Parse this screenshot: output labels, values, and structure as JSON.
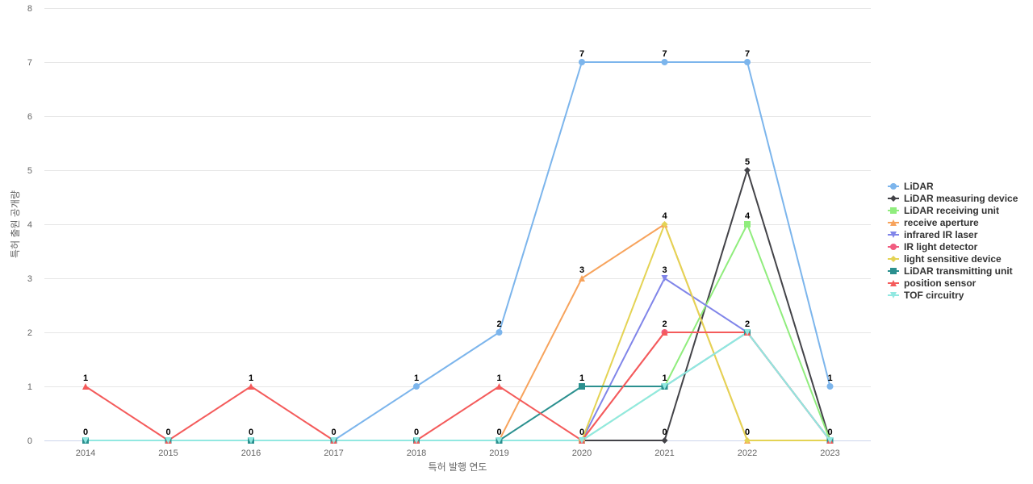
{
  "chart_data": {
    "type": "line",
    "title": "",
    "xlabel": "특허 발행 연도",
    "ylabel": "특허 출원 공개량",
    "categories": [
      "2014",
      "2015",
      "2016",
      "2017",
      "2018",
      "2019",
      "2020",
      "2021",
      "2022",
      "2023"
    ],
    "ylim": [
      0,
      8
    ],
    "yticks": [
      0,
      1,
      2,
      3,
      4,
      5,
      6,
      7,
      8
    ],
    "grid": true,
    "legend_position": "right",
    "series": [
      {
        "name": "LiDAR",
        "color": "#7cb5ec",
        "marker": "circle",
        "values": [
          0,
          0,
          0,
          0,
          1,
          2,
          7,
          7,
          7,
          1
        ]
      },
      {
        "name": "LiDAR measuring device",
        "color": "#434348",
        "marker": "diamond",
        "values": [
          0,
          0,
          0,
          0,
          0,
          0,
          0,
          0,
          5,
          0
        ]
      },
      {
        "name": "LiDAR receiving unit",
        "color": "#90ed7d",
        "marker": "square",
        "values": [
          0,
          0,
          0,
          0,
          0,
          0,
          0,
          1,
          4,
          0
        ]
      },
      {
        "name": "receive aperture",
        "color": "#f7a35c",
        "marker": "triangle",
        "values": [
          0,
          0,
          0,
          0,
          0,
          0,
          3,
          4,
          0,
          0
        ]
      },
      {
        "name": "infrared IR laser",
        "color": "#8085e9",
        "marker": "triangle-down",
        "values": [
          0,
          0,
          0,
          0,
          0,
          0,
          0,
          3,
          2,
          0
        ]
      },
      {
        "name": "IR light detector",
        "color": "#f15c80",
        "marker": "circle",
        "values": [
          0,
          0,
          0,
          0,
          0,
          0,
          0,
          2,
          2,
          0
        ]
      },
      {
        "name": "light sensitive device",
        "color": "#e4d354",
        "marker": "diamond",
        "values": [
          0,
          0,
          0,
          0,
          0,
          0,
          0,
          4,
          0,
          0
        ]
      },
      {
        "name": "LiDAR transmitting unit",
        "color": "#2b908f",
        "marker": "square",
        "values": [
          0,
          0,
          0,
          0,
          0,
          0,
          1,
          1,
          2,
          0
        ]
      },
      {
        "name": "position sensor",
        "color": "#f45b5b",
        "marker": "triangle",
        "values": [
          1,
          0,
          1,
          0,
          0,
          1,
          0,
          2,
          2,
          0
        ]
      },
      {
        "name": "TOF circuitry",
        "color": "#91e8e1",
        "marker": "triangle-down",
        "values": [
          0,
          0,
          0,
          0,
          0,
          0,
          0,
          1,
          2,
          0
        ]
      }
    ],
    "data_labels": [
      {
        "x": "2014",
        "label": "1",
        "value": 1
      },
      {
        "x": "2014",
        "label": "0",
        "value": 0
      },
      {
        "x": "2015",
        "label": "0",
        "value": 0
      },
      {
        "x": "2016",
        "label": "1",
        "value": 1
      },
      {
        "x": "2016",
        "label": "0",
        "value": 0
      },
      {
        "x": "2017",
        "label": "0",
        "value": 0
      },
      {
        "x": "2018",
        "label": "1",
        "value": 1
      },
      {
        "x": "2018",
        "label": "0",
        "value": 0
      },
      {
        "x": "2019",
        "label": "2",
        "value": 2
      },
      {
        "x": "2019",
        "label": "1",
        "value": 1
      },
      {
        "x": "2019",
        "label": "0",
        "value": 0
      },
      {
        "x": "2020",
        "label": "7",
        "value": 7
      },
      {
        "x": "2020",
        "label": "3",
        "value": 3
      },
      {
        "x": "2020",
        "label": "1",
        "value": 1
      },
      {
        "x": "2020",
        "label": "0",
        "value": 0
      },
      {
        "x": "2021",
        "label": "7",
        "value": 7
      },
      {
        "x": "2021",
        "label": "4",
        "value": 4
      },
      {
        "x": "2021",
        "label": "3",
        "value": 3
      },
      {
        "x": "2021",
        "label": "2",
        "value": 2
      },
      {
        "x": "2021",
        "label": "1",
        "value": 1
      },
      {
        "x": "2021",
        "label": "0",
        "value": 0
      },
      {
        "x": "2022",
        "label": "7",
        "value": 7
      },
      {
        "x": "2022",
        "label": "5",
        "value": 5
      },
      {
        "x": "2022",
        "label": "4",
        "value": 4
      },
      {
        "x": "2022",
        "label": "2",
        "value": 2
      },
      {
        "x": "2022",
        "label": "0",
        "value": 0
      },
      {
        "x": "2023",
        "label": "1",
        "value": 1
      },
      {
        "x": "2023",
        "label": "0",
        "value": 0
      }
    ]
  }
}
